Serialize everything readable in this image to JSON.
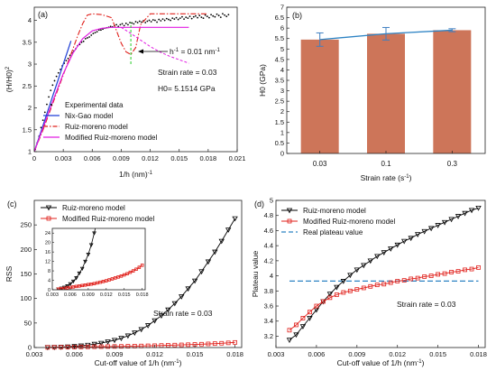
{
  "chart_data": [
    {
      "panel_label": "(a)",
      "type": "line",
      "xlabel": "1/h (nm)",
      "xlabel_exp": "-1",
      "ylabel": "(H/H0)",
      "ylabel_exp": "2",
      "xlim": [
        0,
        0.021
      ],
      "ylim": [
        1,
        4.3
      ],
      "xticks": [
        "0",
        "0.003",
        "0.006",
        "0.009",
        "0.012",
        "0.015",
        "0.018",
        "0.021"
      ],
      "yticks": [
        "1",
        "1.5",
        "2",
        "2.5",
        "3",
        "3.5",
        "4"
      ],
      "annotations": {
        "marker": "h",
        "marker_exp": "-1",
        "marker_value": " = 0.01 nm",
        "marker_value_exp": "-1",
        "strain_rate": "Strain rate = 0.03",
        "h0": "H0= 5.1514 GPa"
      },
      "series": [
        {
          "name": "Experimental data",
          "style": "dots",
          "color": "#000000",
          "x": [
            0.0001,
            0.0003,
            0.0005,
            0.0007,
            0.0009,
            0.0011,
            0.0013,
            0.0015,
            0.0017,
            0.0019,
            0.0021,
            0.0023,
            0.0025,
            0.0027,
            0.0029,
            0.0031,
            0.0033,
            0.0035,
            0.0037,
            0.0039,
            0.0041,
            0.0043,
            0.0045,
            0.0047,
            0.0049,
            0.0051,
            0.0053,
            0.0055,
            0.0057,
            0.0059,
            0.0061,
            0.0063,
            0.0065,
            0.0067,
            0.0069,
            0.0071,
            0.0073,
            0.0075,
            0.0077,
            0.0079,
            0.0081,
            0.0083,
            0.0085,
            0.0087,
            0.0089,
            0.0091,
            0.0093,
            0.0095,
            0.0097,
            0.0099,
            0.0101,
            0.0103,
            0.0105,
            0.0107,
            0.0109,
            0.0111,
            0.0113,
            0.0115,
            0.0117,
            0.0119,
            0.0121,
            0.0123,
            0.0125,
            0.0127,
            0.0129,
            0.0131,
            0.0133,
            0.0135,
            0.0137,
            0.0139,
            0.0141,
            0.0143,
            0.0145,
            0.0147,
            0.0149,
            0.0151,
            0.0153,
            0.0155,
            0.0157,
            0.0159,
            0.0161,
            0.0163,
            0.0165,
            0.0167,
            0.0169,
            0.0171,
            0.0173,
            0.0175,
            0.0177,
            0.0179,
            0.0181,
            0.0183,
            0.0185,
            0.0187,
            0.0189,
            0.0191,
            0.0193,
            0.0195,
            0.0197,
            0.0199,
            0.0201
          ],
          "y": [
            1.05,
            1.2,
            1.35,
            1.55,
            1.72,
            1.9,
            2.08,
            2.25,
            2.4,
            2.52,
            2.62,
            2.72,
            2.8,
            2.88,
            2.96,
            3.02,
            3.08,
            3.13,
            3.2,
            3.26,
            3.3,
            3.35,
            3.42,
            3.45,
            3.5,
            3.52,
            3.58,
            3.6,
            3.62,
            3.66,
            3.7,
            3.72,
            3.74,
            3.78,
            3.78,
            3.8,
            3.82,
            3.83,
            3.84,
            3.86,
            3.85,
            3.88,
            3.9,
            3.86,
            3.9,
            3.92,
            3.88,
            3.93,
            3.9,
            3.95,
            3.94,
            3.92,
            3.97,
            3.95,
            3.98,
            3.96,
            3.99,
            3.95,
            3.98,
            4.0,
            3.97,
            4.01,
            4.0,
            3.96,
            4.02,
            3.99,
            4.03,
            4.0,
            4.04,
            4.02,
            4.0,
            4.05,
            4.03,
            4.06,
            4.02,
            4.05,
            4.08,
            4.03,
            4.07,
            4.05,
            4.09,
            4.04,
            4.08,
            4.1,
            4.06,
            4.11,
            4.07,
            4.05,
            4.12,
            4.09,
            4.06,
            4.13,
            4.1,
            4.08,
            4.14,
            4.11,
            4.07,
            4.15,
            4.12,
            4.09,
            4.13
          ]
        },
        {
          "name": "Nix-Gao model",
          "style": "solid",
          "color": "#1f3fd6",
          "x": [
            0,
            0.0005,
            0.001,
            0.0015,
            0.002,
            0.0025,
            0.003,
            0.0035,
            0.0038
          ],
          "y": [
            1.0,
            1.33,
            1.66,
            2.0,
            2.33,
            2.66,
            3.0,
            3.33,
            3.53
          ]
        },
        {
          "name": "Ruiz-moreno model",
          "style": "dashdot",
          "color": "#e0201b",
          "x": [
            0,
            0.001,
            0.002,
            0.003,
            0.004,
            0.0045,
            0.005,
            0.0055,
            0.006,
            0.007,
            0.008,
            0.009,
            0.0095,
            0.01,
            0.0105,
            0.011,
            0.012,
            0.014,
            0.016,
            0.018
          ],
          "y": [
            1.0,
            1.55,
            2.15,
            2.75,
            3.35,
            3.65,
            3.92,
            4.12,
            4.15,
            4.13,
            4.06,
            3.48,
            3.28,
            3.22,
            3.38,
            3.9,
            4.15,
            4.15,
            4.15,
            4.15
          ]
        },
        {
          "name": "Modified Ruiz-moreno model",
          "style": "solid",
          "color": "#e21ce2",
          "x": [
            0,
            0.001,
            0.002,
            0.003,
            0.004,
            0.005,
            0.006,
            0.007,
            0.008,
            0.009,
            0.01,
            0.011,
            0.012,
            0.013,
            0.014,
            0.015,
            0.016
          ],
          "y": [
            1.0,
            1.6,
            2.2,
            2.78,
            3.25,
            3.58,
            3.76,
            3.82,
            3.84,
            3.84,
            3.84,
            3.84,
            3.84,
            3.84,
            3.84,
            3.84,
            3.84
          ]
        },
        {
          "name": "",
          "style": "dashed-extension",
          "color": "#e21ce2",
          "x": [
            0.009,
            0.01,
            0.011,
            0.012,
            0.013,
            0.014,
            0.0155,
            0.016
          ],
          "y": [
            3.84,
            3.7,
            3.55,
            3.4,
            3.28,
            3.18,
            3.06,
            3.02
          ]
        },
        {
          "name": "",
          "style": "vertical-marker",
          "color": "#3cd13c",
          "x": [
            0.01,
            0.01
          ],
          "y": [
            3.0,
            3.95
          ]
        }
      ]
    },
    {
      "panel_label": "(b)",
      "type": "bar",
      "xlabel": "Strain rate (s",
      "xlabel_exp": "-1",
      "xlabel_suffix": ")",
      "ylabel": "H0 (GPa)",
      "ylim": [
        0,
        7
      ],
      "yticks": [
        "0",
        "0.5",
        "1",
        "1.5",
        "2",
        "2.5",
        "3",
        "3.5",
        "4",
        "4.5",
        "5",
        "5.5",
        "6",
        "6.5",
        "7"
      ],
      "categories": [
        "0.03",
        "0.1",
        "0.3"
      ],
      "values": [
        5.45,
        5.73,
        5.9
      ],
      "errors": [
        0.32,
        0.3,
        0.07
      ],
      "bar_color": "#cd7559",
      "line_color": "#2d83c4",
      "errorbar_color": "#3f7fc1"
    },
    {
      "panel_label": "(c)",
      "type": "line",
      "xlabel": "Cut-off value of 1/h (nm",
      "xlabel_exp": "-1",
      "xlabel_suffix": ")",
      "ylabel": "RSS",
      "xlim": [
        0.003,
        0.0185
      ],
      "ylim": [
        0,
        300
      ],
      "xticks": [
        "0.003",
        "0.006",
        "0.009",
        "0.012",
        "0.015",
        "0.018"
      ],
      "yticks": [
        "0",
        "50",
        "100",
        "150",
        "200",
        "250"
      ],
      "annotations": {
        "strain_rate": "Strain rate = 0.03"
      },
      "series": [
        {
          "name": "Ruiz-moreno model",
          "color": "#000000",
          "marker": "triangle-down",
          "x": [
            0.004,
            0.0045,
            0.005,
            0.0055,
            0.006,
            0.0065,
            0.007,
            0.0075,
            0.008,
            0.0085,
            0.009,
            0.0095,
            0.01,
            0.0105,
            0.011,
            0.0115,
            0.012,
            0.0125,
            0.013,
            0.0135,
            0.014,
            0.0145,
            0.015,
            0.0155,
            0.016,
            0.0165,
            0.017,
            0.0175,
            0.018
          ],
          "y": [
            0.3,
            0.6,
            1.0,
            1.6,
            2.5,
            3.6,
            5.0,
            7,
            9,
            12,
            15,
            19,
            24,
            30,
            37,
            45,
            55,
            65,
            77,
            90,
            104,
            120,
            136,
            155,
            175,
            195,
            217,
            240,
            263
          ]
        },
        {
          "name": "Modified Ruiz-moreno model",
          "color": "#e0201b",
          "marker": "square",
          "x": [
            0.004,
            0.0045,
            0.005,
            0.0055,
            0.006,
            0.0065,
            0.007,
            0.0075,
            0.008,
            0.0085,
            0.009,
            0.0095,
            0.01,
            0.0105,
            0.011,
            0.0115,
            0.012,
            0.0125,
            0.013,
            0.0135,
            0.014,
            0.0145,
            0.015,
            0.0155,
            0.016,
            0.0165,
            0.017,
            0.0175,
            0.018
          ],
          "y": [
            0.3,
            0.5,
            0.6,
            0.8,
            1.0,
            1.2,
            1.4,
            1.6,
            1.8,
            2.0,
            2.2,
            2.4,
            2.6,
            2.9,
            3.2,
            3.5,
            3.8,
            4.2,
            4.6,
            5.0,
            5.4,
            5.8,
            6.3,
            6.8,
            7.4,
            8.0,
            8.7,
            9.5,
            10.4
          ]
        }
      ],
      "inset": {
        "xlim": [
          0.003,
          0.0185
        ],
        "ylim": [
          0,
          26
        ],
        "xticks": [
          "0.003",
          "0.006",
          "0.009",
          "0.012",
          "0.015",
          "0.018"
        ],
        "yticks": [
          "0",
          "4",
          "8",
          "12",
          "16",
          "20",
          "24"
        ]
      }
    },
    {
      "panel_label": "(d)",
      "type": "line",
      "xlabel": "Cut-off value of 1/h (nm",
      "xlabel_exp": "-1",
      "xlabel_suffix": ")",
      "ylabel": "Plateau value",
      "xlim": [
        0.003,
        0.0185
      ],
      "ylim": [
        3.05,
        5.0
      ],
      "xticks": [
        "0.003",
        "0.006",
        "0.009",
        "0.012",
        "0.015",
        "0.018"
      ],
      "yticks": [
        "3.2",
        "3.4",
        "3.6",
        "3.8",
        "4",
        "4.2",
        "4.4",
        "4.6",
        "4.8",
        "5"
      ],
      "annotations": {
        "strain_rate": "Strain rate = 0.03"
      },
      "series": [
        {
          "name": "Ruiz-moreno model",
          "color": "#000000",
          "marker": "triangle-down",
          "x": [
            0.004,
            0.0045,
            0.005,
            0.0055,
            0.006,
            0.0065,
            0.007,
            0.0075,
            0.008,
            0.0085,
            0.009,
            0.0095,
            0.01,
            0.0105,
            0.011,
            0.0115,
            0.012,
            0.0125,
            0.013,
            0.0135,
            0.014,
            0.0145,
            0.015,
            0.0155,
            0.016,
            0.0165,
            0.017,
            0.0175,
            0.018
          ],
          "y": [
            3.15,
            3.22,
            3.33,
            3.44,
            3.55,
            3.66,
            3.76,
            3.85,
            3.93,
            4.01,
            4.08,
            4.14,
            4.2,
            4.26,
            4.31,
            4.36,
            4.41,
            4.46,
            4.5,
            4.55,
            4.59,
            4.63,
            4.67,
            4.71,
            4.75,
            4.79,
            4.83,
            4.87,
            4.9
          ]
        },
        {
          "name": "Modified Ruiz-moreno model",
          "color": "#e0201b",
          "marker": "square",
          "x": [
            0.004,
            0.0045,
            0.005,
            0.0055,
            0.006,
            0.0065,
            0.007,
            0.0075,
            0.008,
            0.0085,
            0.009,
            0.0095,
            0.01,
            0.0105,
            0.011,
            0.0115,
            0.012,
            0.0125,
            0.013,
            0.0135,
            0.014,
            0.0145,
            0.015,
            0.0155,
            0.016,
            0.0165,
            0.017,
            0.0175,
            0.018
          ],
          "y": [
            3.28,
            3.35,
            3.44,
            3.52,
            3.6,
            3.66,
            3.71,
            3.75,
            3.78,
            3.8,
            3.82,
            3.84,
            3.86,
            3.88,
            3.89,
            3.91,
            3.93,
            3.94,
            3.96,
            3.97,
            3.99,
            4.0,
            4.02,
            4.03,
            4.05,
            4.06,
            4.08,
            4.09,
            4.11
          ]
        },
        {
          "name": "Real plateau value",
          "color": "#2d83c4",
          "style": "dashed",
          "x": [
            0.004,
            0.018
          ],
          "y": [
            3.93,
            3.93
          ]
        }
      ]
    }
  ]
}
